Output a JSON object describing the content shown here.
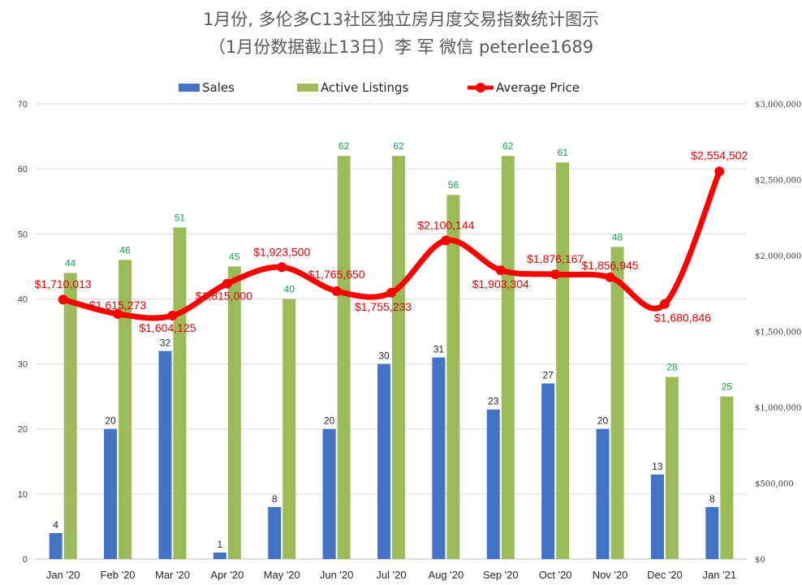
{
  "chart_data": {
    "type": "bar",
    "title": "1月份, 多伦多C13社区独立房月度交易指数统计图示",
    "subtitle": "（1月份数据截止13日）李 军  微信  peterlee1689",
    "legend_position": "top",
    "categories": [
      "Jan '20",
      "Feb '20",
      "Mar '20",
      "Apr '20",
      "May '20",
      "Jun '20",
      "Jul '20",
      "Aug '20",
      "Sep '20",
      "Oct '20",
      "Nov '20",
      "Dec '20",
      "Jan '21"
    ],
    "series": [
      {
        "name": "Sales",
        "type": "bar",
        "axis": "left",
        "color": "#4472c4",
        "values": [
          4,
          20,
          32,
          1,
          8,
          20,
          30,
          31,
          23,
          27,
          20,
          13,
          8
        ]
      },
      {
        "name": "Active Listings",
        "type": "bar",
        "axis": "left",
        "color": "#9bbb59",
        "values": [
          44,
          46,
          51,
          45,
          40,
          62,
          62,
          56,
          62,
          61,
          48,
          28,
          25
        ]
      },
      {
        "name": "Average Price",
        "type": "line",
        "axis": "right",
        "color": "#ff0000",
        "values": [
          1710013,
          1615273,
          1604125,
          1815000,
          1923500,
          1765650,
          1755233,
          2100144,
          1903304,
          1876167,
          1856945,
          1680846,
          2554502
        ],
        "labels": [
          "$1,710,013",
          "$1,615,273",
          "$1,604,125",
          "$1,815,000",
          "$1,923,500",
          "$1,765,650",
          "$1,755,233",
          "$2,100,144",
          "$1,903,304",
          "$1,876,167",
          "$1,856,945",
          "$1,680,846",
          "$2,554,502"
        ]
      }
    ],
    "ylim_left": [
      0,
      70
    ],
    "yticks_left": [
      "0",
      "10",
      "20",
      "30",
      "40",
      "50",
      "60",
      "70"
    ],
    "ylim_right": [
      0,
      3000000
    ],
    "yticks_right": [
      "$0",
      "$500,000",
      "$1,000,000",
      "$1,500,000",
      "$2,000,000",
      "$2,500,000",
      "$3,000,000"
    ],
    "grid": true,
    "colors": {
      "listing_label": "#16a34a",
      "price_label": "#e60000",
      "grid": "#d9d9d9"
    }
  }
}
